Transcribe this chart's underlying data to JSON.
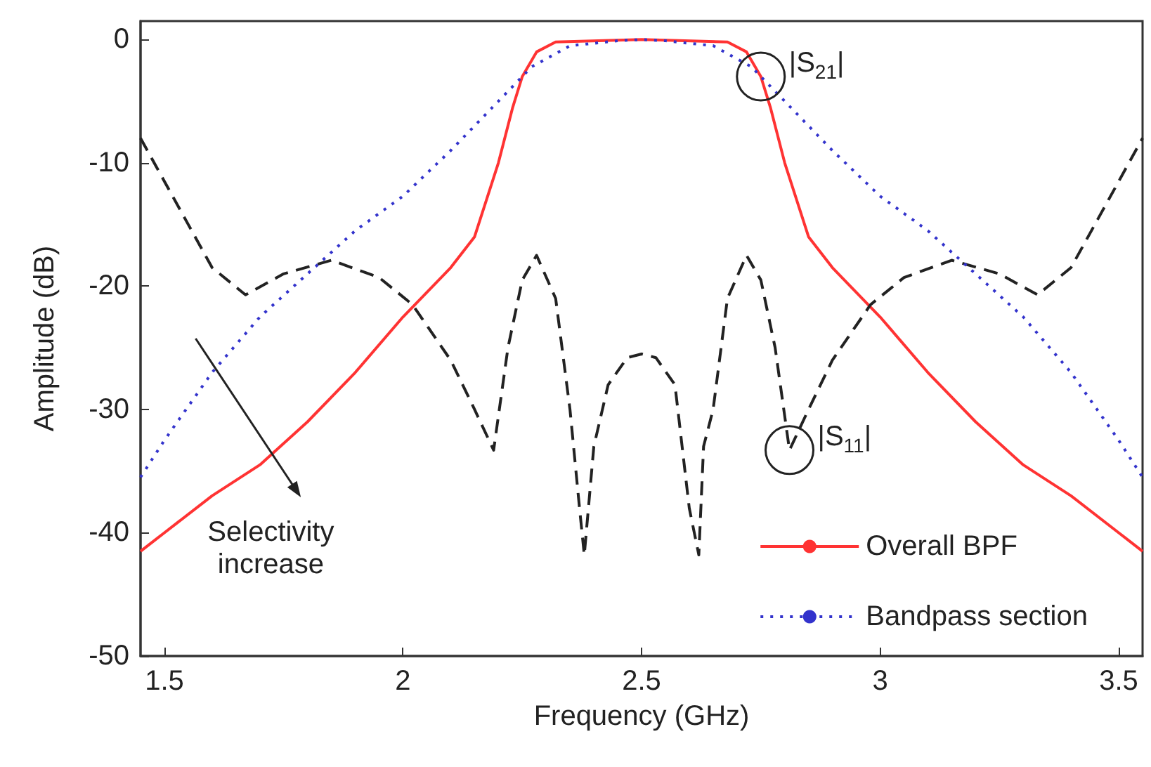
{
  "chart_data": {
    "type": "line",
    "xlabel": "Frequency (GHz)",
    "ylabel": "Amplitude (dB)",
    "xlim": [
      1.45,
      3.55
    ],
    "ylim": [
      -50,
      1.5
    ],
    "xticks": [
      1.5,
      2,
      2.5,
      3,
      3.5
    ],
    "yticks": [
      -50,
      -40,
      -30,
      -20,
      -10,
      0
    ],
    "grid": false,
    "legend": "bottom right",
    "marker": "none",
    "annotations": [
      {
        "text": "|S$_{21}$|",
        "x": 2.75,
        "y": -3
      },
      {
        "text": "|S$_{11}$|",
        "x": 2.81,
        "y": -33.3
      },
      "Selectivity increase"
    ],
    "series": [
      {
        "name": "Overall BPF",
        "color": "#ff3333",
        "line_style": "solid",
        "x": [
          1.45,
          1.5,
          1.6,
          1.7,
          1.8,
          1.9,
          2.0,
          2.1,
          2.15,
          2.2,
          2.23,
          2.25,
          2.28,
          2.32,
          2.5,
          2.68,
          2.72,
          2.75,
          2.77,
          2.8,
          2.85,
          2.9,
          3.0,
          3.1,
          3.2,
          3.3,
          3.4,
          3.5,
          3.55
        ],
        "values": [
          -41.5,
          -40,
          -37,
          -34.5,
          -31,
          -27,
          -22.5,
          -18.5,
          -16,
          -10,
          -5.5,
          -3,
          -1,
          -0.2,
          0,
          -0.2,
          -1,
          -3,
          -5.5,
          -10,
          -16,
          -18.5,
          -22.5,
          -27,
          -31,
          -34.5,
          -37,
          -40,
          -41.5
        ]
      },
      {
        "color": "#222222",
        "line_style": "dashed",
        "x": [
          1.45,
          1.5,
          1.55,
          1.6,
          1.67,
          1.75,
          1.85,
          1.95,
          2.02,
          2.1,
          2.15,
          2.19,
          2.22,
          2.25,
          2.28,
          2.32,
          2.35,
          2.37,
          2.38,
          2.4,
          2.43,
          2.47,
          2.5,
          2.53,
          2.57,
          2.6,
          2.62,
          2.63,
          2.65,
          2.68,
          2.72,
          2.75,
          2.78,
          2.81,
          2.85,
          2.9,
          2.98,
          3.05,
          3.15,
          3.25,
          3.33,
          3.4,
          3.45,
          3.5,
          3.55
        ],
        "values": [
          -8,
          -11.5,
          -15,
          -18.5,
          -20.7,
          -19,
          -17.9,
          -19.3,
          -21.5,
          -26,
          -30,
          -33.3,
          -25,
          -19.5,
          -17.5,
          -21,
          -30,
          -38,
          -41.8,
          -33,
          -28,
          -25.8,
          -25.5,
          -25.8,
          -28,
          -38,
          -41.8,
          -33,
          -30,
          -21,
          -17.5,
          -19.5,
          -25,
          -33.3,
          -30,
          -26,
          -21.5,
          -19.3,
          -17.9,
          -19,
          -20.7,
          -18.5,
          -15,
          -11.5,
          -8
        ]
      },
      {
        "name": "Bandpass section",
        "color": "#3333cc",
        "line_style": "dotted",
        "x": [
          1.45,
          1.5,
          1.6,
          1.7,
          1.8,
          1.9,
          2.0,
          2.1,
          2.2,
          2.27,
          2.35,
          2.45,
          2.5,
          2.55,
          2.65,
          2.73,
          2.8,
          2.9,
          3.0,
          3.1,
          3.2,
          3.3,
          3.4,
          3.5,
          3.55
        ],
        "values": [
          -35.5,
          -32.5,
          -27,
          -22.5,
          -19,
          -15.5,
          -12.7,
          -9,
          -5,
          -2.2,
          -0.5,
          -0.1,
          0,
          -0.1,
          -0.5,
          -2.2,
          -5,
          -9,
          -12.7,
          -15.5,
          -19,
          -22.5,
          -27,
          -32.5,
          -35.5
        ]
      }
    ]
  }
}
